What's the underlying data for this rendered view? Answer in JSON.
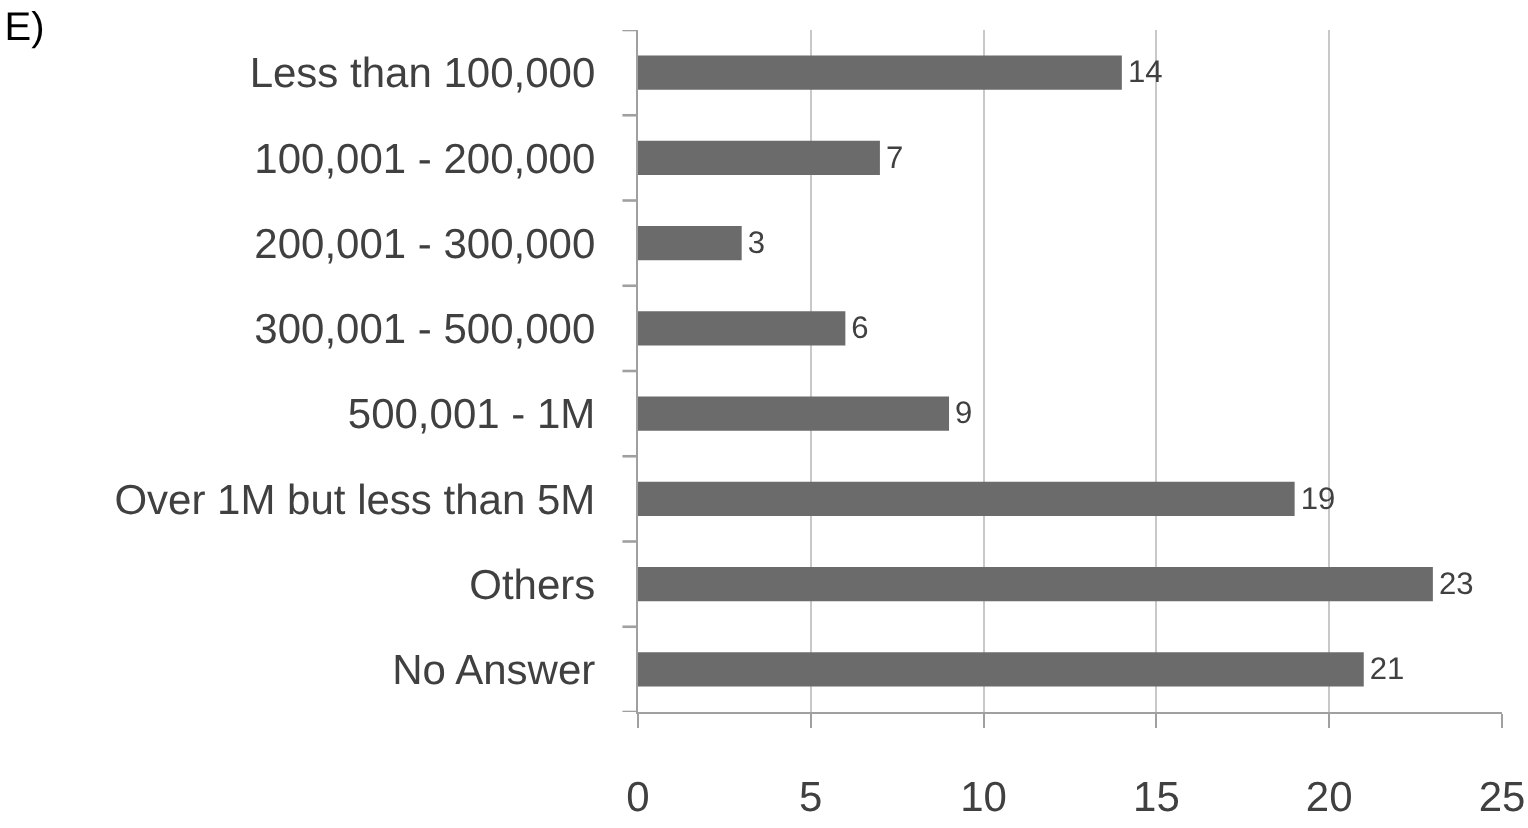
{
  "chart_data": {
    "type": "bar",
    "orientation": "horizontal",
    "title": "E)",
    "categories": [
      "Less than 100,000",
      "100,001 - 200,000",
      "200,001 - 300,000",
      "300,001 - 500,000",
      "500,001 - 1M",
      "Over 1M but less than 5M",
      "Others",
      "No Answer"
    ],
    "values": [
      14,
      7,
      3,
      6,
      9,
      19,
      23,
      21
    ],
    "color": "#6b6b6b",
    "xlim": [
      0,
      25
    ],
    "xticks": [
      0,
      5,
      10,
      15,
      20,
      25
    ],
    "grid": "x",
    "data_labels": true
  }
}
